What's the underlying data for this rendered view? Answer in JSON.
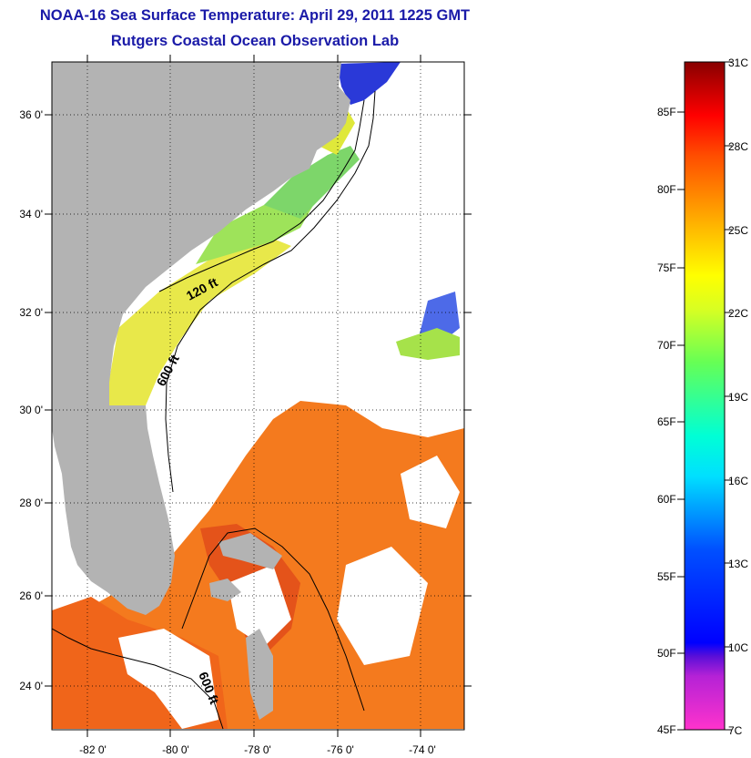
{
  "title": {
    "line1": "NOAA-16 Sea Surface Temperature:  April 29, 2011 1225 GMT",
    "line2": "Rutgers Coastal Ocean Observation Lab"
  },
  "map": {
    "lat_ticks": [
      "24 0'",
      "26 0'",
      "28 0'",
      "30 0'",
      "32 0'",
      "34 0'",
      "36 0'"
    ],
    "lon_ticks": [
      "-82 0'",
      "-80 0'",
      "-78 0'",
      "-76 0'",
      "-74 0'"
    ],
    "contour_labels": {
      "c120": "120 ft",
      "c600_north": "600 ft",
      "c600_south": "600 ft"
    }
  },
  "colorbar": {
    "fahrenheit_labels": [
      "85F",
      "80F",
      "75F",
      "70F",
      "65F",
      "60F",
      "55F",
      "50F",
      "45F"
    ],
    "celsius_labels": [
      "31C",
      "28C",
      "25C",
      "22C",
      "19C",
      "16C",
      "13C",
      "10C",
      "7C"
    ],
    "color_stops": [
      "#ff33cc",
      "#7a1ccc",
      "#0000ff",
      "#0066ff",
      "#00ffff",
      "#33ff99",
      "#99ff33",
      "#ffff00",
      "#ffaa00",
      "#ff5500",
      "#ff0000",
      "#990000"
    ]
  },
  "colors": {
    "land": "#b3b3b3",
    "title": "#1a1aa8",
    "warm_water": "#f47a1e",
    "mid_water": "#e8e84a",
    "cool_water": "#7dd66a"
  }
}
